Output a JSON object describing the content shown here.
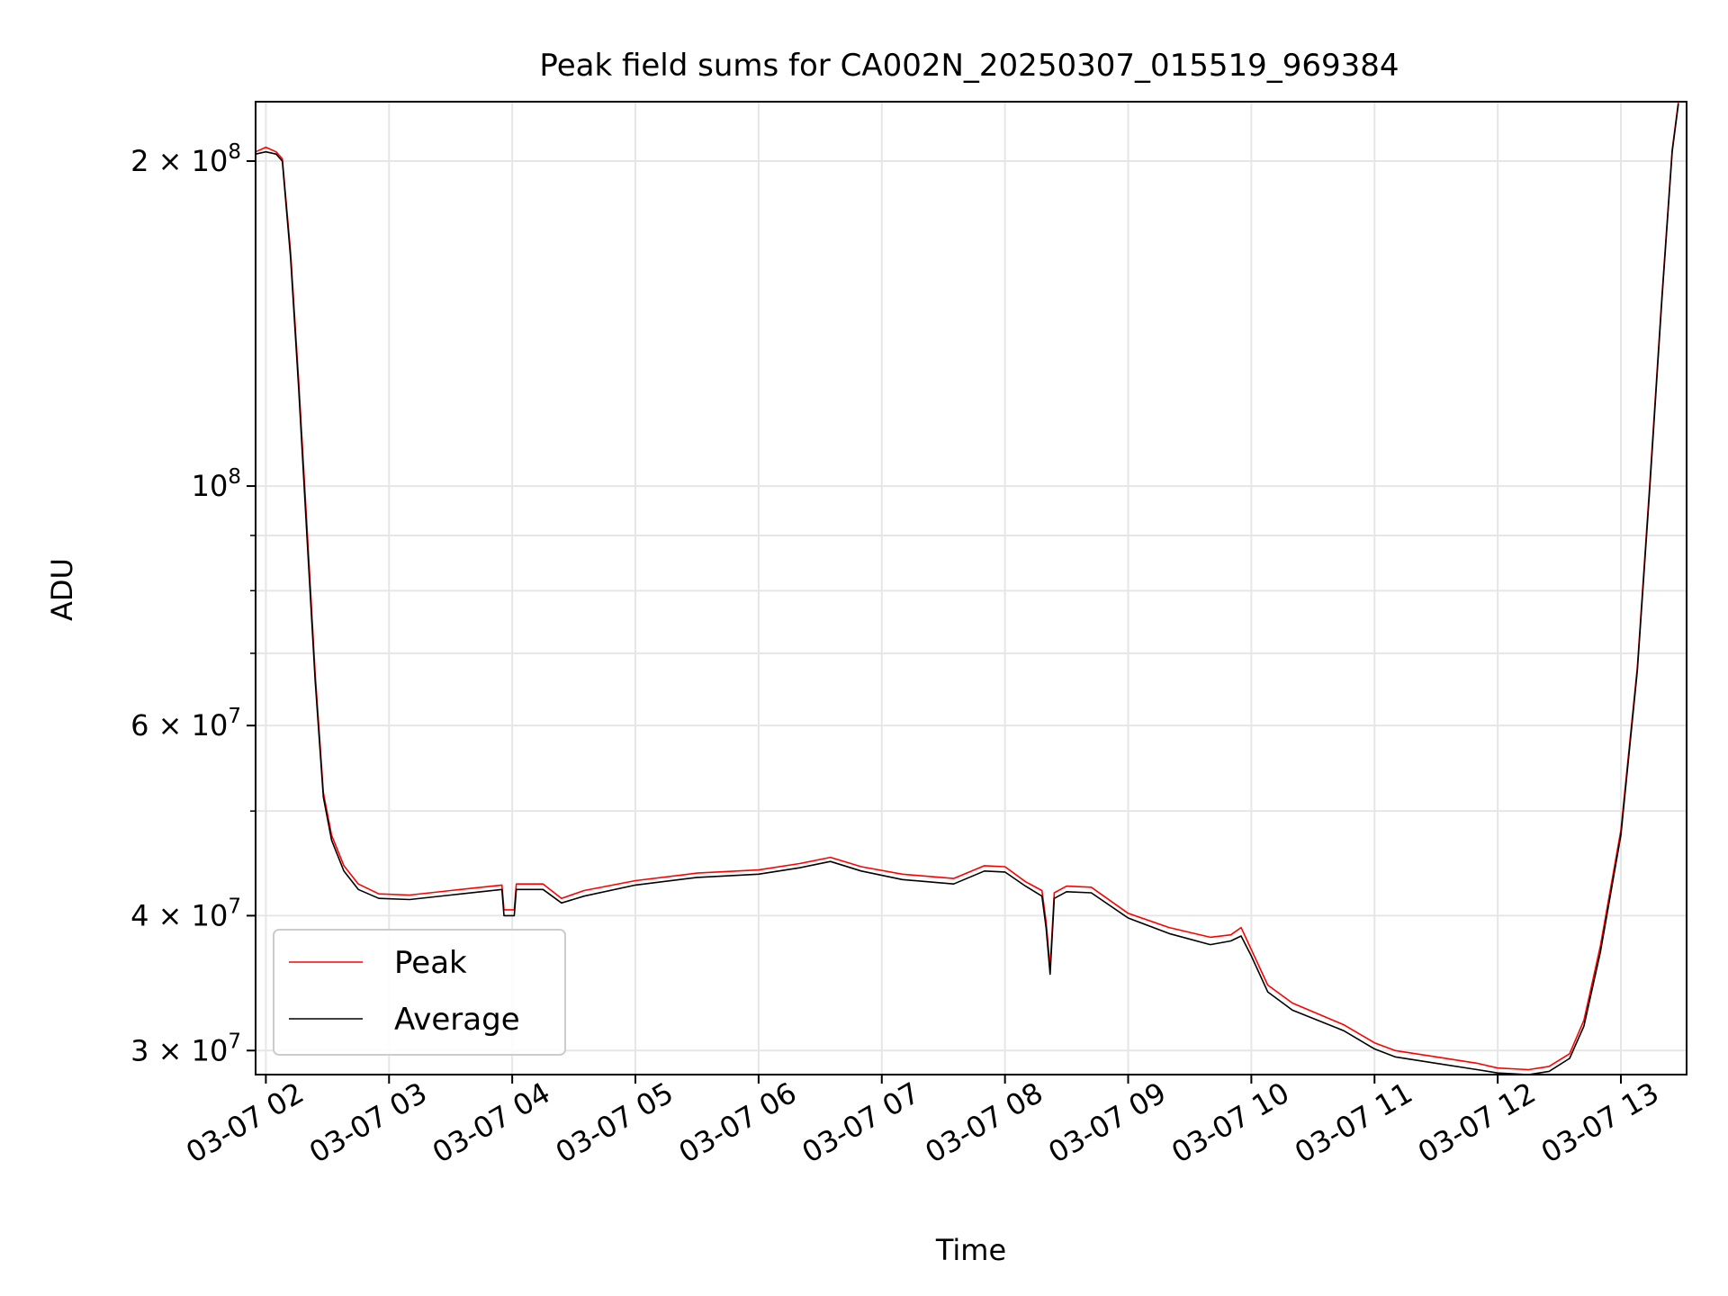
{
  "chart_data": {
    "type": "line",
    "title": "Peak field sums for CA002N_20250307_015519_969384",
    "xlabel": "Time",
    "ylabel": "ADU",
    "x_scale": "time",
    "y_scale": "log",
    "xlim": [
      "2025-03-07 01:55",
      "2025-03-07 13:32"
    ],
    "ylim": [
      28500000,
      227000000
    ],
    "grid": true,
    "legend_position": "lower-left",
    "x_ticks": [
      {
        "time": "2025-03-07 02:00",
        "label": "03-07 02"
      },
      {
        "time": "2025-03-07 03:00",
        "label": "03-07 03"
      },
      {
        "time": "2025-03-07 04:00",
        "label": "03-07 04"
      },
      {
        "time": "2025-03-07 05:00",
        "label": "03-07 05"
      },
      {
        "time": "2025-03-07 06:00",
        "label": "03-07 06"
      },
      {
        "time": "2025-03-07 07:00",
        "label": "03-07 07"
      },
      {
        "time": "2025-03-07 08:00",
        "label": "03-07 08"
      },
      {
        "time": "2025-03-07 09:00",
        "label": "03-07 09"
      },
      {
        "time": "2025-03-07 10:00",
        "label": "03-07 10"
      },
      {
        "time": "2025-03-07 11:00",
        "label": "03-07 11"
      },
      {
        "time": "2025-03-07 12:00",
        "label": "03-07 12"
      },
      {
        "time": "2025-03-07 13:00",
        "label": "03-07 13"
      }
    ],
    "y_ticks_major": [
      {
        "value": 200000000,
        "mantissa": "2",
        "base": "10",
        "exponent": "8"
      },
      {
        "value": 100000000,
        "mantissa": "",
        "base": "10",
        "exponent": "8"
      },
      {
        "value": 60000000,
        "mantissa": "6",
        "base": "10",
        "exponent": "7"
      },
      {
        "value": 40000000,
        "mantissa": "4",
        "base": "10",
        "exponent": "7"
      },
      {
        "value": 30000000,
        "mantissa": "3",
        "base": "10",
        "exponent": "7"
      }
    ],
    "y_ticks_minor": [
      50000000,
      70000000,
      80000000,
      90000000
    ],
    "series": [
      {
        "name": "Peak",
        "color": "#ff0000",
        "points": [
          [
            "2025-03-07 01:55",
            204000000
          ],
          [
            "2025-03-07 02:00",
            206000000
          ],
          [
            "2025-03-07 02:05",
            204000000
          ],
          [
            "2025-03-07 02:08",
            201000000
          ],
          [
            "2025-03-07 02:12",
            165000000
          ],
          [
            "2025-03-07 02:16",
            125000000
          ],
          [
            "2025-03-07 02:20",
            92000000
          ],
          [
            "2025-03-07 02:24",
            67000000
          ],
          [
            "2025-03-07 02:28",
            52000000
          ],
          [
            "2025-03-07 02:32",
            47500000
          ],
          [
            "2025-03-07 02:38",
            44500000
          ],
          [
            "2025-03-07 02:45",
            42800000
          ],
          [
            "2025-03-07 02:55",
            41900000
          ],
          [
            "2025-03-07 03:10",
            41800000
          ],
          [
            "2025-03-07 03:30",
            42200000
          ],
          [
            "2025-03-07 03:55",
            42700000
          ],
          [
            "2025-03-07 03:56",
            40500000
          ],
          [
            "2025-03-07 04:01",
            40500000
          ],
          [
            "2025-03-07 04:02",
            42800000
          ],
          [
            "2025-03-07 04:15",
            42800000
          ],
          [
            "2025-03-07 04:24",
            41500000
          ],
          [
            "2025-03-07 04:35",
            42200000
          ],
          [
            "2025-03-07 05:00",
            43100000
          ],
          [
            "2025-03-07 05:30",
            43800000
          ],
          [
            "2025-03-07 06:00",
            44100000
          ],
          [
            "2025-03-07 06:20",
            44700000
          ],
          [
            "2025-03-07 06:35",
            45300000
          ],
          [
            "2025-03-07 06:50",
            44400000
          ],
          [
            "2025-03-07 07:10",
            43700000
          ],
          [
            "2025-03-07 07:35",
            43300000
          ],
          [
            "2025-03-07 07:50",
            44500000
          ],
          [
            "2025-03-07 08:00",
            44400000
          ],
          [
            "2025-03-07 08:10",
            43000000
          ],
          [
            "2025-03-07 08:18",
            42200000
          ],
          [
            "2025-03-07 08:20",
            39500000
          ],
          [
            "2025-03-07 08:22",
            35800000
          ],
          [
            "2025-03-07 08:24",
            42000000
          ],
          [
            "2025-03-07 08:30",
            42600000
          ],
          [
            "2025-03-07 08:42",
            42500000
          ],
          [
            "2025-03-07 09:00",
            40200000
          ],
          [
            "2025-03-07 09:20",
            39000000
          ],
          [
            "2025-03-07 09:40",
            38200000
          ],
          [
            "2025-03-07 09:50",
            38400000
          ],
          [
            "2025-03-07 09:55",
            39000000
          ],
          [
            "2025-03-07 10:00",
            37200000
          ],
          [
            "2025-03-07 10:08",
            34500000
          ],
          [
            "2025-03-07 10:20",
            33200000
          ],
          [
            "2025-03-07 10:45",
            31700000
          ],
          [
            "2025-03-07 11:00",
            30500000
          ],
          [
            "2025-03-07 11:10",
            30000000
          ],
          [
            "2025-03-07 11:30",
            29600000
          ],
          [
            "2025-03-07 11:50",
            29200000
          ],
          [
            "2025-03-07 12:00",
            28900000
          ],
          [
            "2025-03-07 12:15",
            28800000
          ],
          [
            "2025-03-07 12:25",
            29000000
          ],
          [
            "2025-03-07 12:35",
            29800000
          ],
          [
            "2025-03-07 12:42",
            32000000
          ],
          [
            "2025-03-07 12:50",
            37500000
          ],
          [
            "2025-03-07 13:00",
            48000000
          ],
          [
            "2025-03-07 13:08",
            68000000
          ],
          [
            "2025-03-07 13:14",
            100000000
          ],
          [
            "2025-03-07 13:20",
            150000000
          ],
          [
            "2025-03-07 13:25",
            205000000
          ],
          [
            "2025-03-07 13:28",
            227000000
          ]
        ]
      },
      {
        "name": "Average",
        "color": "#000000",
        "points": [
          [
            "2025-03-07 01:55",
            203000000
          ],
          [
            "2025-03-07 02:00",
            204000000
          ],
          [
            "2025-03-07 02:05",
            203000000
          ],
          [
            "2025-03-07 02:08",
            200000000
          ],
          [
            "2025-03-07 02:12",
            163000000
          ],
          [
            "2025-03-07 02:16",
            123000000
          ],
          [
            "2025-03-07 02:20",
            90000000
          ],
          [
            "2025-03-07 02:24",
            66000000
          ],
          [
            "2025-03-07 02:28",
            51500000
          ],
          [
            "2025-03-07 02:32",
            47000000
          ],
          [
            "2025-03-07 02:38",
            44000000
          ],
          [
            "2025-03-07 02:45",
            42300000
          ],
          [
            "2025-03-07 02:55",
            41500000
          ],
          [
            "2025-03-07 03:10",
            41400000
          ],
          [
            "2025-03-07 03:30",
            41800000
          ],
          [
            "2025-03-07 03:55",
            42300000
          ],
          [
            "2025-03-07 03:56",
            40000000
          ],
          [
            "2025-03-07 04:01",
            40000000
          ],
          [
            "2025-03-07 04:02",
            42300000
          ],
          [
            "2025-03-07 04:15",
            42300000
          ],
          [
            "2025-03-07 04:24",
            41100000
          ],
          [
            "2025-03-07 04:35",
            41700000
          ],
          [
            "2025-03-07 05:00",
            42700000
          ],
          [
            "2025-03-07 05:30",
            43400000
          ],
          [
            "2025-03-07 06:00",
            43700000
          ],
          [
            "2025-03-07 06:20",
            44300000
          ],
          [
            "2025-03-07 06:35",
            44900000
          ],
          [
            "2025-03-07 06:50",
            44000000
          ],
          [
            "2025-03-07 07:10",
            43200000
          ],
          [
            "2025-03-07 07:35",
            42800000
          ],
          [
            "2025-03-07 07:50",
            44000000
          ],
          [
            "2025-03-07 08:00",
            43900000
          ],
          [
            "2025-03-07 08:10",
            42600000
          ],
          [
            "2025-03-07 08:18",
            41700000
          ],
          [
            "2025-03-07 08:20",
            39000000
          ],
          [
            "2025-03-07 08:22",
            35300000
          ],
          [
            "2025-03-07 08:24",
            41500000
          ],
          [
            "2025-03-07 08:30",
            42100000
          ],
          [
            "2025-03-07 08:42",
            42000000
          ],
          [
            "2025-03-07 09:00",
            39800000
          ],
          [
            "2025-03-07 09:20",
            38500000
          ],
          [
            "2025-03-07 09:40",
            37600000
          ],
          [
            "2025-03-07 09:50",
            37900000
          ],
          [
            "2025-03-07 09:55",
            38300000
          ],
          [
            "2025-03-07 10:00",
            36700000
          ],
          [
            "2025-03-07 10:08",
            34000000
          ],
          [
            "2025-03-07 10:20",
            32700000
          ],
          [
            "2025-03-07 10:45",
            31300000
          ],
          [
            "2025-03-07 11:00",
            30100000
          ],
          [
            "2025-03-07 11:10",
            29600000
          ],
          [
            "2025-03-07 11:30",
            29200000
          ],
          [
            "2025-03-07 11:50",
            28800000
          ],
          [
            "2025-03-07 12:00",
            28600000
          ],
          [
            "2025-03-07 12:15",
            28500000
          ],
          [
            "2025-03-07 12:25",
            28700000
          ],
          [
            "2025-03-07 12:35",
            29500000
          ],
          [
            "2025-03-07 12:42",
            31600000
          ],
          [
            "2025-03-07 12:50",
            37000000
          ],
          [
            "2025-03-07 13:00",
            47500000
          ],
          [
            "2025-03-07 13:08",
            67500000
          ],
          [
            "2025-03-07 13:14",
            99000000
          ],
          [
            "2025-03-07 13:20",
            149000000
          ],
          [
            "2025-03-07 13:25",
            204000000
          ],
          [
            "2025-03-07 13:28",
            226000000
          ]
        ]
      }
    ]
  }
}
